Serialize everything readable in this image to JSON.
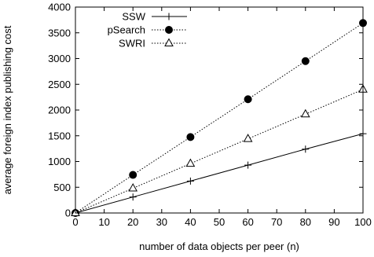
{
  "chart_data": {
    "type": "line",
    "title": "",
    "xlabel": "number of data objects per peer (n)",
    "ylabel": "average foreign index publishing cost",
    "xlim": [
      0,
      100
    ],
    "ylim": [
      0,
      4000
    ],
    "xticks": [
      0,
      10,
      20,
      30,
      40,
      50,
      60,
      70,
      80,
      90,
      100
    ],
    "yticks": [
      0,
      500,
      1000,
      1500,
      2000,
      2500,
      3000,
      3500,
      4000
    ],
    "grid": false,
    "legend_position": "top-left",
    "series": [
      {
        "name": "SSW",
        "marker": "plus",
        "line_style": "solid",
        "color": "#000000",
        "x": [
          0,
          20,
          40,
          60,
          80,
          100
        ],
        "y": [
          0,
          310,
          620,
          930,
          1240,
          1540
        ]
      },
      {
        "name": "pSearch",
        "marker": "filled-circle",
        "line_style": "dotted",
        "color": "#000000",
        "x": [
          0,
          20,
          40,
          60,
          80,
          100
        ],
        "y": [
          0,
          740,
          1475,
          2210,
          2950,
          3690
        ]
      },
      {
        "name": "SWRI",
        "marker": "open-triangle",
        "line_style": "dotted",
        "color": "#000000",
        "x": [
          0,
          20,
          40,
          60,
          80,
          100
        ],
        "y": [
          0,
          480,
          960,
          1440,
          1920,
          2400
        ]
      }
    ]
  }
}
